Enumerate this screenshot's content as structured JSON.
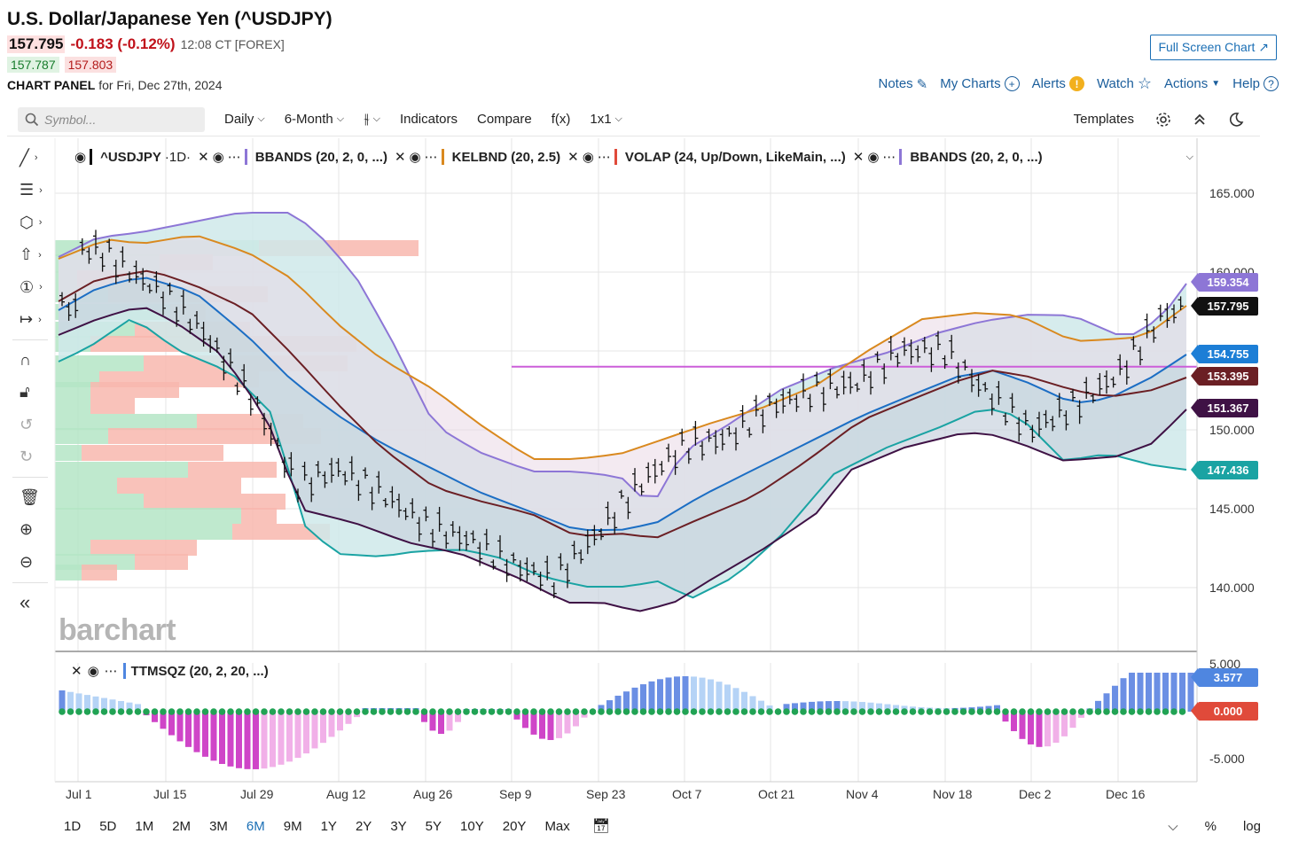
{
  "header": {
    "title": "U.S. Dollar/Japanese Yen (^USDJPY)",
    "last": "157.795",
    "change": "-0.183 (-0.12%)",
    "time": "12:08 CT [FOREX]",
    "bid": "157.787",
    "ask": "157.803",
    "panel_label": "CHART PANEL",
    "panel_date": "for Fri, Dec 27th, 2024",
    "fullscreen": "Full Screen Chart"
  },
  "links": {
    "notes": "Notes",
    "my_charts": "My Charts",
    "alerts": "Alerts",
    "watch": "Watch",
    "actions": "Actions",
    "help": "Help"
  },
  "toolbar": {
    "search_placeholder": "Symbol...",
    "period": "Daily",
    "range": "6-Month",
    "indicators": "Indicators",
    "compare": "Compare",
    "fx": "f(x)",
    "layout": "1x1",
    "templates": "Templates"
  },
  "legend": {
    "symbol": "^USDJPY",
    "interval": "·1D·",
    "bbands": "BBANDS (20, 2, 0, ...)",
    "kelbnd": "KELBND (20, 2.5)",
    "volap": "VOLAP (24, Up/Down, LikeMain, ...)",
    "bbands2": "BBANDS (20, 2, 0, ...)",
    "ttmsqz": "TTMSQZ (20, 2, 20, ...)"
  },
  "colors": {
    "bband": "#8d76d6",
    "kelt": "#d9891f",
    "volap": "#e04a3a",
    "teal": "#1aa3a3",
    "maroon": "#6b1f24",
    "blue": "#1c6ec4",
    "purple_dark": "#3f1245",
    "hline": "#cc5ed9"
  },
  "price_tags": [
    {
      "value": "159.354",
      "color": "#8d76d6"
    },
    {
      "value": "157.795",
      "color": "#111111"
    },
    {
      "value": "154.755",
      "color": "#1c7ed6"
    },
    {
      "value": "153.395",
      "color": "#6b1f24"
    },
    {
      "value": "151.367",
      "color": "#3f1245"
    },
    {
      "value": "147.436",
      "color": "#1aa3a3"
    }
  ],
  "sub_tags": [
    {
      "value": "3.577",
      "color": "#4f86e0"
    },
    {
      "value": "0.000",
      "color": "#e04a3a"
    }
  ],
  "y_axis": [
    "165.000",
    "160.000",
    "150.000",
    "145.000",
    "140.000"
  ],
  "sub_axis": [
    "5.000",
    "-5.000"
  ],
  "x_axis": [
    "Jul 1",
    "Jul 15",
    "Jul 29",
    "Aug 12",
    "Aug 26",
    "Sep 9",
    "Sep 23",
    "Oct 7",
    "Oct 21",
    "Nov 4",
    "Nov 18",
    "Dec 2",
    "Dec 16"
  ],
  "ranges": [
    "1D",
    "5D",
    "1M",
    "2M",
    "3M",
    "6M",
    "9M",
    "1Y",
    "2Y",
    "3Y",
    "5Y",
    "10Y",
    "20Y",
    "Max"
  ],
  "active_range": "6M",
  "bottom_right": {
    "pct": "%",
    "log": "log"
  },
  "watermark": "barchart",
  "chart_data": {
    "type": "line",
    "y_range": [
      137,
      167
    ],
    "close_series": {
      "name": "^USDJPY",
      "x": [
        "Jul 1",
        "Jul 8",
        "Jul 15",
        "Jul 22",
        "Jul 29",
        "Aug 5",
        "Aug 12",
        "Aug 19",
        "Aug 26",
        "Sep 2",
        "Sep 9",
        "Sep 16",
        "Sep 23",
        "Sep 30",
        "Oct 7",
        "Oct 14",
        "Oct 21",
        "Oct 28",
        "Nov 4",
        "Nov 11",
        "Nov 18",
        "Nov 25",
        "Dec 2",
        "Dec 9",
        "Dec 16",
        "Dec 23",
        "Dec 27"
      ],
      "values": [
        161.5,
        161.3,
        158.5,
        156.5,
        152.0,
        146.5,
        147.5,
        146.0,
        144.0,
        143.0,
        141.5,
        140.5,
        143.5,
        146.5,
        149.0,
        149.5,
        151.5,
        152.5,
        153.0,
        155.0,
        155.0,
        152.5,
        150.0,
        151.5,
        153.5,
        157.2,
        157.8
      ]
    },
    "reference_line": 154.0
  }
}
